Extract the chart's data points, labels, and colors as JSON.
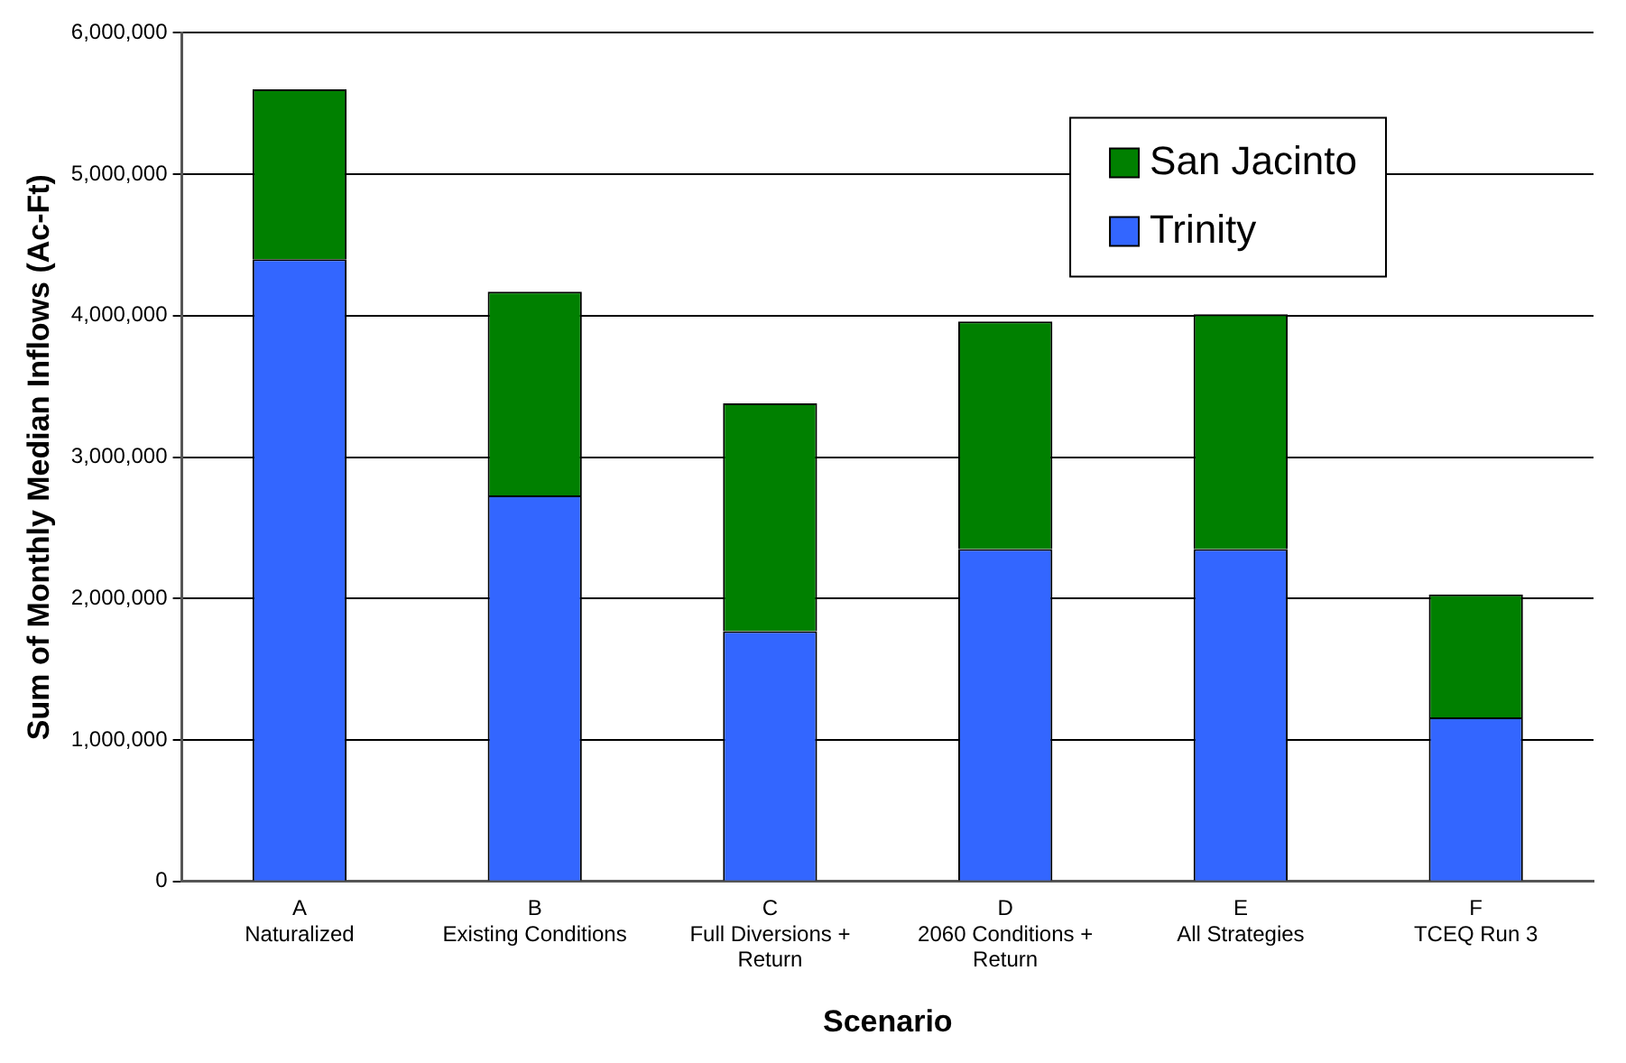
{
  "chart_data": {
    "type": "bar",
    "stacked": true,
    "xlabel": "Scenario",
    "ylabel": "Sum of Monthly Median Inflows (Ac-Ft)",
    "categories": [
      "A\nNaturalized",
      "B\nExisting Conditions",
      "C\nFull Diversions +\nReturn",
      "D\n2060 Conditions +\nReturn",
      "E\nAll Strategies",
      "F\nTCEQ Run 3"
    ],
    "series": [
      {
        "name": "Trinity",
        "color": "#3366ff",
        "values": [
          4400000,
          2730000,
          1770000,
          2350000,
          2350000,
          1160000
        ]
      },
      {
        "name": "San Jacinto",
        "color": "#008000",
        "values": [
          1200000,
          1440000,
          1610000,
          1610000,
          1660000,
          870000
        ]
      }
    ],
    "ylim": [
      0,
      6000000
    ],
    "yticks": [
      0,
      {
        "value": 1000000,
        "label": "1,000,000"
      },
      {
        "value": 2000000,
        "label": "2,000,000"
      },
      {
        "value": 3000000,
        "label": "3,000,000"
      },
      {
        "value": 4000000,
        "label": "4,000,000"
      },
      {
        "value": 5000000,
        "label": "5,000,000"
      },
      {
        "value": 6000000,
        "label": "6,000,000"
      }
    ],
    "grid": "y",
    "legend": "top right"
  }
}
